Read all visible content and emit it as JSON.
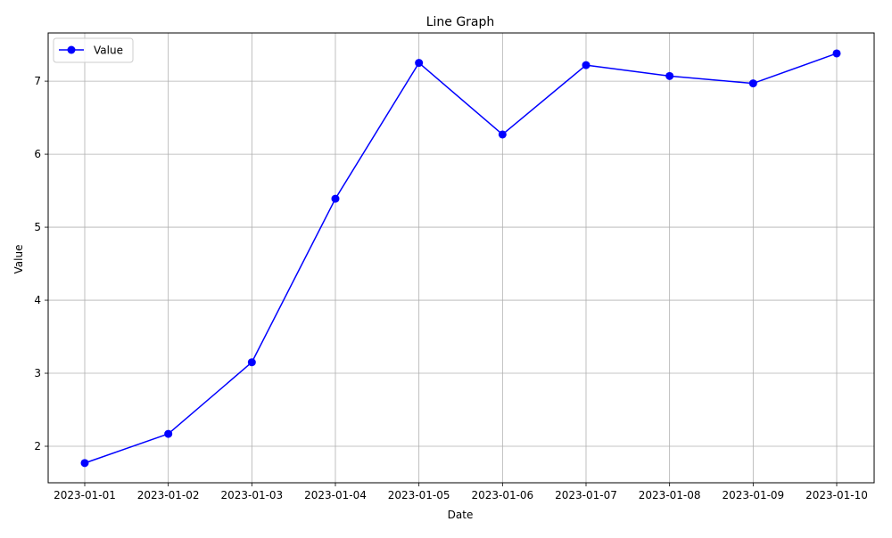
{
  "chart_data": {
    "type": "line",
    "title": "Line Graph",
    "xlabel": "Date",
    "ylabel": "Value",
    "x": [
      "2023-01-01",
      "2023-01-02",
      "2023-01-03",
      "2023-01-04",
      "2023-01-05",
      "2023-01-06",
      "2023-01-07",
      "2023-01-08",
      "2023-01-09",
      "2023-01-10"
    ],
    "series": [
      {
        "name": "Value",
        "values": [
          1.77,
          2.17,
          3.15,
          5.39,
          7.25,
          6.27,
          7.22,
          7.07,
          6.97,
          7.38
        ],
        "color": "#0000ff",
        "marker": "circle"
      }
    ],
    "ylim": [
      1.5,
      7.66
    ],
    "yticks": [
      2,
      3,
      4,
      5,
      6,
      7
    ],
    "grid": true,
    "legend_position": "upper-left"
  }
}
